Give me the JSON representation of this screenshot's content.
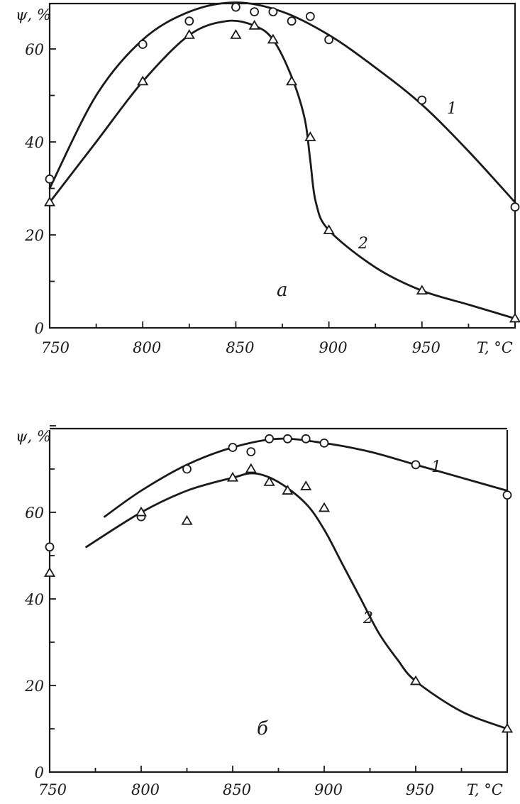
{
  "chart_data": [
    {
      "type": "scatter",
      "panel_label": "а",
      "xlabel": "T, °C",
      "ylabel": "ψ, %",
      "xlim": [
        750,
        1000
      ],
      "ylim": [
        0,
        70
      ],
      "x_ticks": [
        750,
        800,
        850,
        900,
        950
      ],
      "y_ticks": [
        0,
        20,
        40,
        60
      ],
      "grid": false,
      "series": [
        {
          "name": "1",
          "marker": "circle",
          "points": [
            [
              750,
              32
            ],
            [
              800,
              61
            ],
            [
              825,
              66
            ],
            [
              850,
              69
            ],
            [
              860,
              68
            ],
            [
              870,
              68
            ],
            [
              880,
              66
            ],
            [
              890,
              67
            ],
            [
              900,
              62
            ],
            [
              950,
              49
            ],
            [
              1000,
              26
            ]
          ],
          "curve": [
            [
              750,
              30
            ],
            [
              775,
              50
            ],
            [
              800,
              62
            ],
            [
              825,
              68
            ],
            [
              850,
              70
            ],
            [
              875,
              68
            ],
            [
              900,
              63
            ],
            [
              925,
              56
            ],
            [
              950,
              48
            ],
            [
              975,
              38
            ],
            [
              1000,
              27
            ]
          ]
        },
        {
          "name": "2",
          "marker": "triangle",
          "points": [
            [
              750,
              27
            ],
            [
              800,
              53
            ],
            [
              825,
              63
            ],
            [
              850,
              63
            ],
            [
              860,
              65
            ],
            [
              870,
              62
            ],
            [
              880,
              53
            ],
            [
              890,
              41
            ],
            [
              900,
              21
            ],
            [
              950,
              8
            ],
            [
              1000,
              2
            ]
          ],
          "curve": [
            [
              750,
              27
            ],
            [
              775,
              40
            ],
            [
              800,
              53
            ],
            [
              825,
              63
            ],
            [
              845,
              66
            ],
            [
              860,
              65
            ],
            [
              870,
              62
            ],
            [
              880,
              54
            ],
            [
              887,
              45
            ],
            [
              890,
              36
            ],
            [
              893,
              27
            ],
            [
              900,
              21
            ],
            [
              925,
              13
            ],
            [
              950,
              8
            ],
            [
              975,
              5
            ],
            [
              1000,
              2
            ]
          ]
        }
      ]
    },
    {
      "type": "scatter",
      "panel_label": "б",
      "xlabel": "T, °C",
      "ylabel": "ψ, %",
      "xlim": [
        750,
        1000
      ],
      "ylim": [
        0,
        80
      ],
      "x_ticks": [
        750,
        800,
        850,
        900,
        950
      ],
      "y_ticks": [
        0,
        20,
        40,
        60
      ],
      "grid": false,
      "series": [
        {
          "name": "1",
          "marker": "circle",
          "points": [
            [
              750,
              52
            ],
            [
              800,
              59
            ],
            [
              825,
              70
            ],
            [
              850,
              75
            ],
            [
              860,
              74
            ],
            [
              870,
              77
            ],
            [
              880,
              77
            ],
            [
              890,
              77
            ],
            [
              900,
              76
            ],
            [
              950,
              71
            ],
            [
              1000,
              64
            ]
          ],
          "curve": [
            [
              780,
              59
            ],
            [
              800,
              65
            ],
            [
              825,
              71
            ],
            [
              850,
              75
            ],
            [
              875,
              77
            ],
            [
              900,
              76
            ],
            [
              925,
              74
            ],
            [
              950,
              71
            ],
            [
              975,
              68
            ],
            [
              1000,
              65
            ]
          ]
        },
        {
          "name": "2",
          "marker": "triangle",
          "points": [
            [
              750,
              46
            ],
            [
              800,
              60
            ],
            [
              825,
              58
            ],
            [
              850,
              68
            ],
            [
              860,
              70
            ],
            [
              870,
              67
            ],
            [
              880,
              65
            ],
            [
              890,
              66
            ],
            [
              900,
              61
            ],
            [
              950,
              21
            ],
            [
              1000,
              10
            ]
          ],
          "curve": [
            [
              770,
              52
            ],
            [
              800,
              60
            ],
            [
              825,
              65
            ],
            [
              850,
              68
            ],
            [
              862,
              69
            ],
            [
              875,
              67
            ],
            [
              890,
              62
            ],
            [
              900,
              56
            ],
            [
              910,
              48
            ],
            [
              920,
              40
            ],
            [
              930,
              32
            ],
            [
              940,
              26
            ],
            [
              950,
              21
            ],
            [
              975,
              14
            ],
            [
              1000,
              10
            ]
          ]
        }
      ]
    }
  ]
}
